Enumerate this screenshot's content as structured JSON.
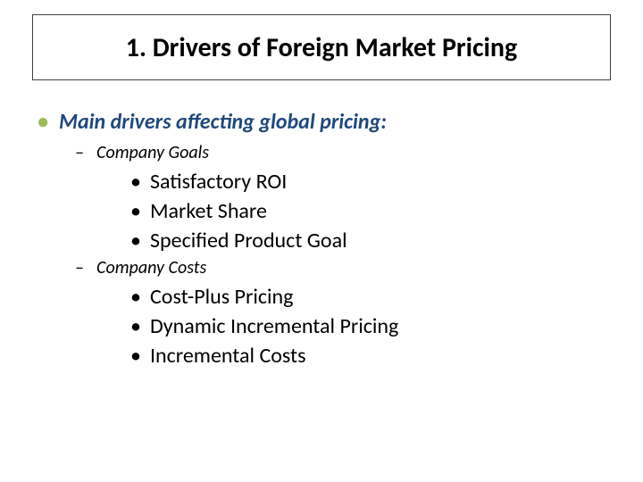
{
  "slide": {
    "title": "1. Drivers of Foreign Market Pricing",
    "l1_text": "Main drivers affecting global pricing:",
    "section_a": {
      "heading": "Company Goals",
      "items": [
        "Satisfactory ROI",
        "Market Share",
        "Specified Product Goal"
      ]
    },
    "section_b": {
      "heading": "Company Costs",
      "items": [
        "Cost-Plus Pricing",
        "Dynamic Incremental Pricing",
        "Incremental Costs"
      ]
    }
  },
  "style": {
    "background_color": "#ffffff",
    "title_border_color": "#404040",
    "title_font_size": 30,
    "title_font_weight": "bold",
    "l1_bullet_color": "#9bbb59",
    "l1_text_color": "#1f497d",
    "l1_font_size": 24,
    "l1_font_weight": "bold",
    "l1_font_style": "italic",
    "l2_font_size": 20,
    "l2_font_style": "italic",
    "l2_bullet": "–",
    "l3_font_size": 24,
    "l3_bullet": "•",
    "body_text_color": "#000000",
    "font_family": "Calibri"
  }
}
